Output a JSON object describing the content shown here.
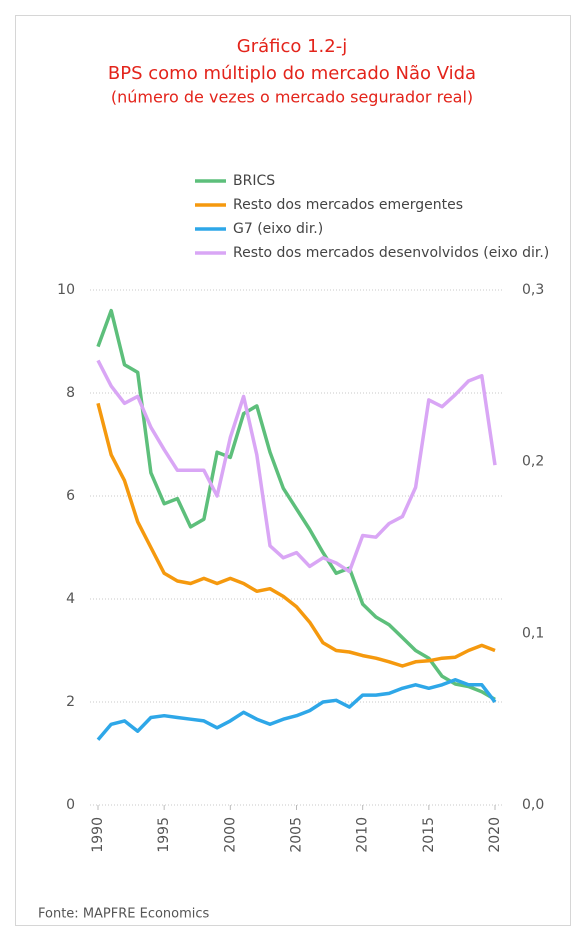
{
  "chart_data": {
    "type": "line",
    "title": [
      "Gráfico 1.2-j",
      "BPS como múltiplo do mercado Não Vida",
      "(número de vezes o mercado segurador real)"
    ],
    "source": "Fonte: MAPFRE Economics",
    "x": [
      1990,
      1991,
      1992,
      1993,
      1994,
      1995,
      1996,
      1997,
      1998,
      1999,
      2000,
      2001,
      2002,
      2003,
      2004,
      2005,
      2006,
      2007,
      2008,
      2009,
      2010,
      2011,
      2012,
      2013,
      2014,
      2015,
      2016,
      2017,
      2018,
      2019,
      2020
    ],
    "xlim": [
      1990,
      2020
    ],
    "xticks": [
      1990,
      1995,
      2000,
      2005,
      2010,
      2015,
      2020
    ],
    "ylim": [
      0,
      10
    ],
    "yticks": [
      0,
      2,
      4,
      6,
      8,
      10
    ],
    "y2lim": [
      0,
      0.3
    ],
    "y2ticks": [
      {
        "value": 0,
        "label": "0,0"
      },
      {
        "value": 0.1,
        "label": "0,1"
      },
      {
        "value": 0.2,
        "label": "0,2"
      },
      {
        "value": 0.3,
        "label": "0,3"
      }
    ],
    "grid": true,
    "series": [
      {
        "name": "BRICS",
        "color": "#5dbf7b",
        "values": [
          8.9,
          9.6,
          8.55,
          8.4,
          6.45,
          5.85,
          5.95,
          5.4,
          5.55,
          6.85,
          6.75,
          7.6,
          7.75,
          6.85,
          6.15,
          5.75,
          5.35,
          4.9,
          4.5,
          4.6,
          3.9,
          3.65,
          3.5,
          3.25,
          3.0,
          2.85,
          2.5,
          2.35,
          2.3,
          2.2,
          2.05
        ]
      },
      {
        "name": "Resto dos mercados emergentes",
        "color": "#f5990e",
        "values": [
          7.8,
          6.8,
          6.3,
          5.5,
          5.0,
          4.5,
          4.35,
          4.3,
          4.4,
          4.3,
          4.4,
          4.3,
          4.15,
          4.2,
          4.05,
          3.85,
          3.55,
          3.15,
          3.0,
          2.97,
          2.9,
          2.85,
          2.78,
          2.7,
          2.78,
          2.8,
          2.85,
          2.87,
          3.0,
          3.1,
          3.0
        ]
      },
      {
        "name": "G7 (eixo dir.)",
        "color": "#2ea7e8",
        "axis": "y2",
        "values": [
          0.038,
          0.047,
          0.049,
          0.043,
          0.051,
          0.052,
          0.051,
          0.05,
          0.049,
          0.045,
          0.049,
          0.054,
          0.05,
          0.047,
          0.05,
          0.052,
          0.055,
          0.06,
          0.061,
          0.057,
          0.064,
          0.064,
          0.065,
          0.068,
          0.07,
          0.068,
          0.07,
          0.073,
          0.07,
          0.07,
          0.06
        ]
      },
      {
        "name": "Resto dos mercados desenvolvidos (eixo dir.)",
        "color": "#d9a6f5",
        "axis": "y2",
        "values": [
          0.259,
          0.244,
          0.234,
          0.238,
          0.22,
          0.207,
          0.195,
          0.195,
          0.195,
          0.18,
          0.214,
          0.238,
          0.204,
          0.151,
          0.144,
          0.147,
          0.139,
          0.144,
          0.141,
          0.136,
          0.157,
          0.156,
          0.164,
          0.168,
          0.185,
          0.236,
          0.232,
          0.239,
          0.247,
          0.25,
          0.198
        ]
      }
    ]
  }
}
